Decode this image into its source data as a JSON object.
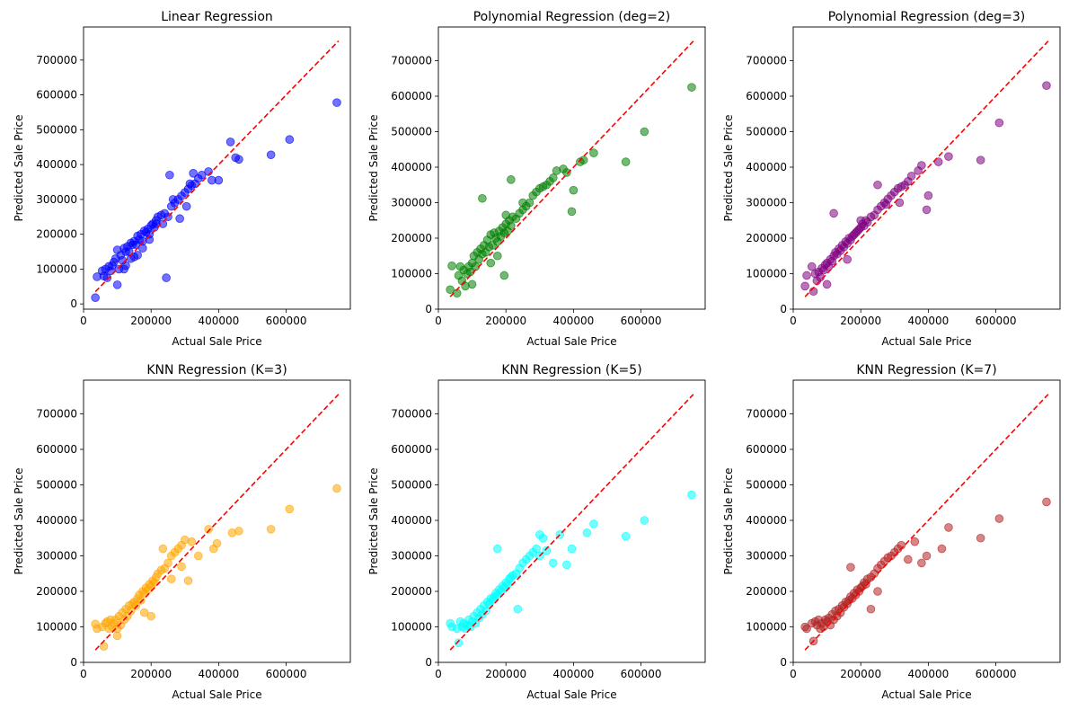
{
  "figure": {
    "background": "#ffffff"
  },
  "chart_data": [
    {
      "type": "scatter",
      "title": "Linear Regression",
      "xlabel": "Actual Sale Price",
      "ylabel": "Predicted Sale Price",
      "xlim": [
        0,
        790000
      ],
      "ylim": [
        -15000,
        795000
      ],
      "xticks": [
        0,
        200000,
        400000,
        600000
      ],
      "yticks": [
        0,
        100000,
        200000,
        300000,
        400000,
        500000,
        600000,
        700000
      ],
      "color": "#0000ff",
      "alpha": 0.55,
      "reference_line": {
        "style": "dashed",
        "color": "#ff0000",
        "from": [
          35000,
          35000
        ],
        "to": [
          755000,
          755000
        ]
      },
      "points": {
        "x": [
          35000,
          40000,
          55000,
          60000,
          65000,
          70000,
          75000,
          80000,
          85000,
          90000,
          95000,
          100000,
          105000,
          110000,
          115000,
          120000,
          125000,
          130000,
          135000,
          140000,
          145000,
          150000,
          155000,
          160000,
          165000,
          170000,
          175000,
          180000,
          185000,
          190000,
          195000,
          200000,
          205000,
          210000,
          215000,
          220000,
          230000,
          240000,
          250000,
          260000,
          270000,
          280000,
          290000,
          300000,
          310000,
          320000,
          330000,
          340000,
          350000,
          370000,
          380000,
          400000,
          435000,
          450000,
          460000,
          555000,
          610000,
          750000,
          245000,
          255000,
          265000,
          285000,
          305000,
          315000,
          325000,
          125000,
          140000,
          160000,
          175000,
          195000,
          215000,
          235000,
          100000,
          120000,
          150000
        ],
        "y": [
          18000,
          78000,
          95000,
          80000,
          100000,
          75000,
          108000,
          95000,
          110000,
          120000,
          130000,
          155000,
          100000,
          140000,
          125000,
          160000,
          150000,
          165000,
          150000,
          175000,
          170000,
          180000,
          170000,
          195000,
          185000,
          200000,
          180000,
          210000,
          205000,
          215000,
          200000,
          225000,
          230000,
          220000,
          240000,
          250000,
          255000,
          260000,
          250000,
          280000,
          290000,
          300000,
          310000,
          320000,
          330000,
          340000,
          345000,
          360000,
          370000,
          380000,
          355000,
          355000,
          465000,
          420000,
          415000,
          428000,
          472000,
          578000,
          75000,
          370000,
          300000,
          245000,
          280000,
          345000,
          375000,
          110000,
          130000,
          140000,
          160000,
          185000,
          230000,
          230000,
          55000,
          100000,
          135000
        ]
      }
    },
    {
      "type": "scatter",
      "title": "Polynomial Regression (deg=2)",
      "xlabel": "Actual Sale Price",
      "ylabel": "Predicted Sale Price",
      "xlim": [
        0,
        790000
      ],
      "ylim": [
        0,
        795000
      ],
      "xticks": [
        0,
        200000,
        400000,
        600000
      ],
      "yticks": [
        0,
        100000,
        200000,
        300000,
        400000,
        500000,
        600000,
        700000
      ],
      "color": "#008000",
      "alpha": 0.55,
      "reference_line": {
        "style": "dashed",
        "color": "#ff0000",
        "from": [
          35000,
          35000
        ],
        "to": [
          755000,
          755000
        ]
      },
      "points": {
        "x": [
          35000,
          40000,
          55000,
          60000,
          65000,
          70000,
          75000,
          80000,
          85000,
          90000,
          95000,
          100000,
          105000,
          110000,
          115000,
          120000,
          125000,
          130000,
          135000,
          140000,
          145000,
          150000,
          155000,
          160000,
          165000,
          170000,
          175000,
          180000,
          185000,
          190000,
          195000,
          200000,
          205000,
          210000,
          215000,
          220000,
          230000,
          240000,
          250000,
          260000,
          270000,
          280000,
          290000,
          300000,
          310000,
          320000,
          330000,
          340000,
          350000,
          370000,
          380000,
          400000,
          420000,
          430000,
          460000,
          555000,
          610000,
          750000,
          130000,
          195000,
          215000,
          250000,
          395000,
          200000,
          100000,
          155000,
          175000
        ],
        "y": [
          55000,
          122000,
          45000,
          95000,
          120000,
          80000,
          110000,
          65000,
          100000,
          120000,
          105000,
          130000,
          150000,
          120000,
          160000,
          140000,
          170000,
          155000,
          180000,
          160000,
          195000,
          175000,
          210000,
          180000,
          215000,
          200000,
          190000,
          220000,
          205000,
          230000,
          215000,
          240000,
          220000,
          250000,
          235000,
          260000,
          255000,
          270000,
          280000,
          290000,
          300000,
          320000,
          330000,
          340000,
          345000,
          350000,
          360000,
          370000,
          390000,
          395000,
          385000,
          335000,
          415000,
          420000,
          440000,
          415000,
          500000,
          625000,
          312000,
          95000,
          365000,
          300000,
          275000,
          265000,
          70000,
          130000,
          150000
        ]
      }
    },
    {
      "type": "scatter",
      "title": "Polynomial Regression (deg=3)",
      "xlabel": "Actual Sale Price",
      "ylabel": "Predicted Sale Price",
      "xlim": [
        0,
        790000
      ],
      "ylim": [
        0,
        795000
      ],
      "xticks": [
        0,
        200000,
        400000,
        600000
      ],
      "yticks": [
        0,
        100000,
        200000,
        300000,
        400000,
        500000,
        600000,
        700000
      ],
      "color": "#800080",
      "alpha": 0.55,
      "reference_line": {
        "style": "dashed",
        "color": "#ff0000",
        "from": [
          35000,
          35000
        ],
        "to": [
          755000,
          755000
        ]
      },
      "points": {
        "x": [
          35000,
          40000,
          55000,
          60000,
          65000,
          70000,
          75000,
          80000,
          85000,
          90000,
          95000,
          100000,
          105000,
          110000,
          115000,
          120000,
          125000,
          130000,
          135000,
          140000,
          145000,
          150000,
          155000,
          160000,
          165000,
          170000,
          175000,
          180000,
          185000,
          190000,
          195000,
          200000,
          205000,
          210000,
          215000,
          220000,
          230000,
          240000,
          250000,
          260000,
          270000,
          280000,
          290000,
          300000,
          310000,
          320000,
          330000,
          340000,
          350000,
          370000,
          380000,
          400000,
          430000,
          460000,
          555000,
          610000,
          750000,
          120000,
          250000,
          275000,
          315000,
          395000,
          200000,
          100000,
          160000
        ],
        "y": [
          65000,
          95000,
          120000,
          50000,
          100000,
          80000,
          105000,
          90000,
          115000,
          110000,
          125000,
          130000,
          120000,
          140000,
          135000,
          150000,
          160000,
          155000,
          170000,
          165000,
          180000,
          175000,
          190000,
          185000,
          200000,
          195000,
          205000,
          210000,
          215000,
          220000,
          225000,
          230000,
          240000,
          235000,
          250000,
          245000,
          260000,
          265000,
          280000,
          290000,
          300000,
          310000,
          320000,
          330000,
          340000,
          345000,
          350000,
          360000,
          375000,
          390000,
          405000,
          320000,
          415000,
          430000,
          420000,
          525000,
          630000,
          270000,
          350000,
          295000,
          300000,
          280000,
          250000,
          70000,
          140000
        ]
      }
    },
    {
      "type": "scatter",
      "title": "KNN Regression (K=3)",
      "xlabel": "Actual Sale Price",
      "ylabel": "Predicted Sale Price",
      "xlim": [
        0,
        790000
      ],
      "ylim": [
        0,
        795000
      ],
      "xticks": [
        0,
        200000,
        400000,
        600000
      ],
      "yticks": [
        0,
        100000,
        200000,
        300000,
        400000,
        500000,
        600000,
        700000
      ],
      "color": "#ffa500",
      "alpha": 0.55,
      "reference_line": {
        "style": "dashed",
        "color": "#ff0000",
        "from": [
          35000,
          35000
        ],
        "to": [
          755000,
          755000
        ]
      },
      "points": {
        "x": [
          35000,
          40000,
          55000,
          60000,
          65000,
          70000,
          75000,
          80000,
          85000,
          90000,
          95000,
          100000,
          105000,
          110000,
          115000,
          120000,
          125000,
          130000,
          135000,
          140000,
          145000,
          150000,
          155000,
          160000,
          165000,
          170000,
          175000,
          180000,
          185000,
          190000,
          195000,
          200000,
          205000,
          210000,
          215000,
          220000,
          230000,
          240000,
          250000,
          260000,
          270000,
          280000,
          290000,
          300000,
          310000,
          320000,
          340000,
          370000,
          385000,
          395000,
          440000,
          460000,
          555000,
          610000,
          750000,
          200000,
          235000,
          260000,
          290000,
          180000,
          100000
        ],
        "y": [
          108000,
          95000,
          100000,
          45000,
          110000,
          115000,
          95000,
          120000,
          100000,
          110000,
          120000,
          95000,
          130000,
          105000,
          140000,
          120000,
          150000,
          130000,
          160000,
          145000,
          165000,
          170000,
          160000,
          180000,
          190000,
          175000,
          200000,
          195000,
          210000,
          205000,
          220000,
          215000,
          230000,
          225000,
          240000,
          250000,
          260000,
          265000,
          280000,
          300000,
          310000,
          320000,
          330000,
          345000,
          230000,
          340000,
          300000,
          375000,
          320000,
          335000,
          365000,
          370000,
          375000,
          432000,
          490000,
          130000,
          320000,
          235000,
          270000,
          140000,
          75000
        ]
      }
    },
    {
      "type": "scatter",
      "title": "KNN Regression (K=5)",
      "xlabel": "Actual Sale Price",
      "ylabel": "Predicted Sale Price",
      "xlim": [
        0,
        790000
      ],
      "ylim": [
        0,
        795000
      ],
      "xticks": [
        0,
        200000,
        400000,
        600000
      ],
      "yticks": [
        0,
        100000,
        200000,
        300000,
        400000,
        500000,
        600000,
        700000
      ],
      "color": "#00ffff",
      "alpha": 0.55,
      "reference_line": {
        "style": "dashed",
        "color": "#ff0000",
        "from": [
          35000,
          35000
        ],
        "to": [
          755000,
          755000
        ]
      },
      "points": {
        "x": [
          35000,
          40000,
          55000,
          60000,
          65000,
          70000,
          75000,
          80000,
          85000,
          90000,
          95000,
          100000,
          105000,
          110000,
          115000,
          120000,
          125000,
          130000,
          135000,
          140000,
          145000,
          150000,
          155000,
          160000,
          165000,
          170000,
          175000,
          180000,
          185000,
          190000,
          195000,
          200000,
          205000,
          210000,
          215000,
          220000,
          230000,
          240000,
          250000,
          260000,
          270000,
          280000,
          290000,
          300000,
          310000,
          320000,
          340000,
          360000,
          380000,
          395000,
          440000,
          460000,
          555000,
          610000,
          750000,
          175000,
          235000,
          300000
        ],
        "y": [
          110000,
          100000,
          95000,
          55000,
          115000,
          100000,
          110000,
          95000,
          105000,
          120000,
          100000,
          115000,
          130000,
          110000,
          140000,
          125000,
          150000,
          135000,
          160000,
          145000,
          170000,
          165000,
          180000,
          175000,
          185000,
          195000,
          190000,
          205000,
          200000,
          215000,
          210000,
          225000,
          220000,
          235000,
          240000,
          245000,
          250000,
          265000,
          280000,
          290000,
          300000,
          310000,
          320000,
          300000,
          350000,
          315000,
          280000,
          360000,
          275000,
          320000,
          365000,
          390000,
          355000,
          400000,
          472000,
          320000,
          150000,
          360000
        ]
      }
    },
    {
      "type": "scatter",
      "title": "KNN Regression (K=7)",
      "xlabel": "Actual Sale Price",
      "ylabel": "Predicted Sale Price",
      "xlim": [
        0,
        790000
      ],
      "ylim": [
        0,
        795000
      ],
      "xticks": [
        0,
        200000,
        400000,
        600000
      ],
      "yticks": [
        0,
        100000,
        200000,
        300000,
        400000,
        500000,
        600000,
        700000
      ],
      "color": "#b22222",
      "alpha": 0.55,
      "reference_line": {
        "style": "dashed",
        "color": "#ff0000",
        "from": [
          35000,
          35000
        ],
        "to": [
          755000,
          755000
        ]
      },
      "points": {
        "x": [
          35000,
          40000,
          55000,
          60000,
          65000,
          70000,
          75000,
          80000,
          85000,
          90000,
          95000,
          100000,
          105000,
          110000,
          115000,
          120000,
          125000,
          130000,
          135000,
          140000,
          145000,
          150000,
          155000,
          160000,
          165000,
          170000,
          175000,
          180000,
          185000,
          190000,
          195000,
          200000,
          205000,
          210000,
          215000,
          220000,
          230000,
          240000,
          250000,
          260000,
          270000,
          280000,
          290000,
          300000,
          310000,
          320000,
          340000,
          360000,
          380000,
          395000,
          440000,
          460000,
          555000,
          610000,
          750000,
          170000,
          230000,
          250000
        ],
        "y": [
          100000,
          95000,
          110000,
          60000,
          115000,
          105000,
          120000,
          95000,
          110000,
          100000,
          120000,
          115000,
          125000,
          105000,
          135000,
          120000,
          145000,
          130000,
          150000,
          140000,
          160000,
          155000,
          170000,
          165000,
          175000,
          185000,
          180000,
          195000,
          190000,
          205000,
          200000,
          210000,
          215000,
          225000,
          220000,
          235000,
          240000,
          250000,
          265000,
          275000,
          285000,
          295000,
          300000,
          310000,
          320000,
          330000,
          290000,
          340000,
          280000,
          300000,
          320000,
          380000,
          350000,
          405000,
          452000,
          268000,
          150000,
          200000
        ]
      }
    }
  ]
}
